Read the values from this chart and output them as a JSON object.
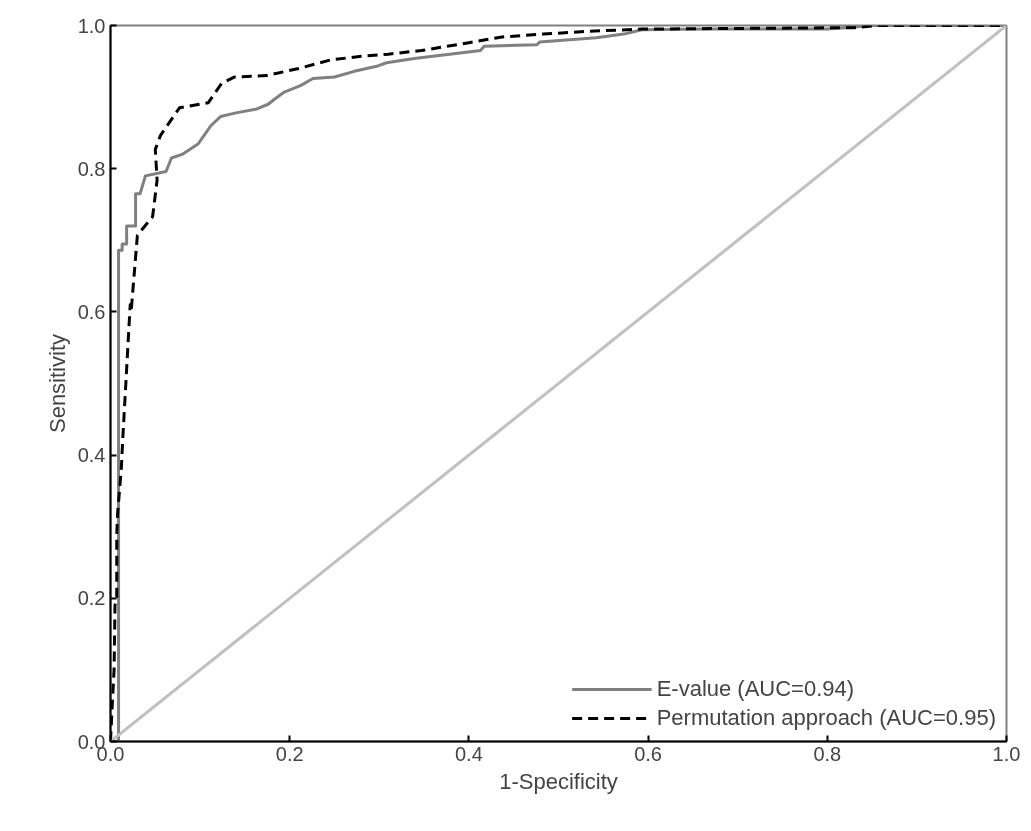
{
  "chart_data": {
    "type": "line",
    "xlabel": "1-Specificity",
    "ylabel": "Sensitivity",
    "xlim": [
      0,
      1
    ],
    "ylim": [
      0,
      1
    ],
    "xticks": [
      {
        "value": 0,
        "label": "0.0"
      },
      0.2,
      0.4,
      0.6,
      0.8,
      {
        "value": 1,
        "label": "1.0"
      }
    ],
    "yticks": [
      {
        "value": 0,
        "label": "0.0"
      },
      0.2,
      0.4,
      0.6,
      0.8,
      {
        "value": 1,
        "label": "1.0"
      }
    ],
    "grid": false,
    "legend": "bottom right",
    "series": [
      {
        "name": "E-value (AUC=0.94)",
        "color": "#808080",
        "line_style": "solid",
        "x": [
          0,
          0.009,
          0.009,
          0.013,
          0.013,
          0.018,
          0.018,
          0.028,
          0.028,
          0.033,
          0.039,
          0.062,
          0.068,
          0.08,
          0.098,
          0.112,
          0.123,
          0.14,
          0.162,
          0.176,
          0.183,
          0.194,
          0.212,
          0.226,
          0.25,
          0.272,
          0.297,
          0.308,
          0.339,
          0.374,
          0.413,
          0.417,
          0.476,
          0.479,
          0.542,
          0.573,
          0.593,
          0.663,
          0.8,
          0.82,
          0.85,
          1
        ],
        "values": [
          0,
          0,
          0.686,
          0.686,
          0.695,
          0.695,
          0.72,
          0.72,
          0.765,
          0.765,
          0.79,
          0.796,
          0.815,
          0.82,
          0.835,
          0.86,
          0.873,
          0.878,
          0.883,
          0.89,
          0.897,
          0.907,
          0.916,
          0.926,
          0.928,
          0.936,
          0.943,
          0.948,
          0.954,
          0.959,
          0.965,
          0.971,
          0.973,
          0.977,
          0.983,
          0.988,
          0.994,
          0.995,
          0.995,
          0.997,
          1,
          1
        ]
      },
      {
        "name": "Permutation approach (AUC=0.95)",
        "color": "#000000",
        "line_style": "dashed",
        "x": [
          0,
          0.002,
          0.004,
          0.005,
          0.007,
          0.007,
          0.008,
          0.012,
          0.014,
          0.022,
          0.023,
          0.03,
          0.047,
          0.052,
          0.05,
          0.056,
          0.077,
          0.109,
          0.124,
          0.138,
          0.174,
          0.21,
          0.246,
          0.28,
          0.31,
          0.347,
          0.4,
          0.437,
          0.483,
          0.534,
          0.593,
          0.83,
          0.855,
          1
        ],
        "values": [
          0,
          0.053,
          0.1,
          0.19,
          0.2,
          0.29,
          0.32,
          0.38,
          0.43,
          0.61,
          0.6,
          0.707,
          0.733,
          0.784,
          0.827,
          0.847,
          0.885,
          0.892,
          0.919,
          0.928,
          0.93,
          0.94,
          0.952,
          0.957,
          0.96,
          0.965,
          0.976,
          0.984,
          0.988,
          0.992,
          0.995,
          0.997,
          1,
          1
        ]
      },
      {
        "color": "#c0c0c0",
        "line_style": "solid",
        "x": [
          0,
          1
        ],
        "values": [
          0,
          1
        ]
      }
    ]
  }
}
